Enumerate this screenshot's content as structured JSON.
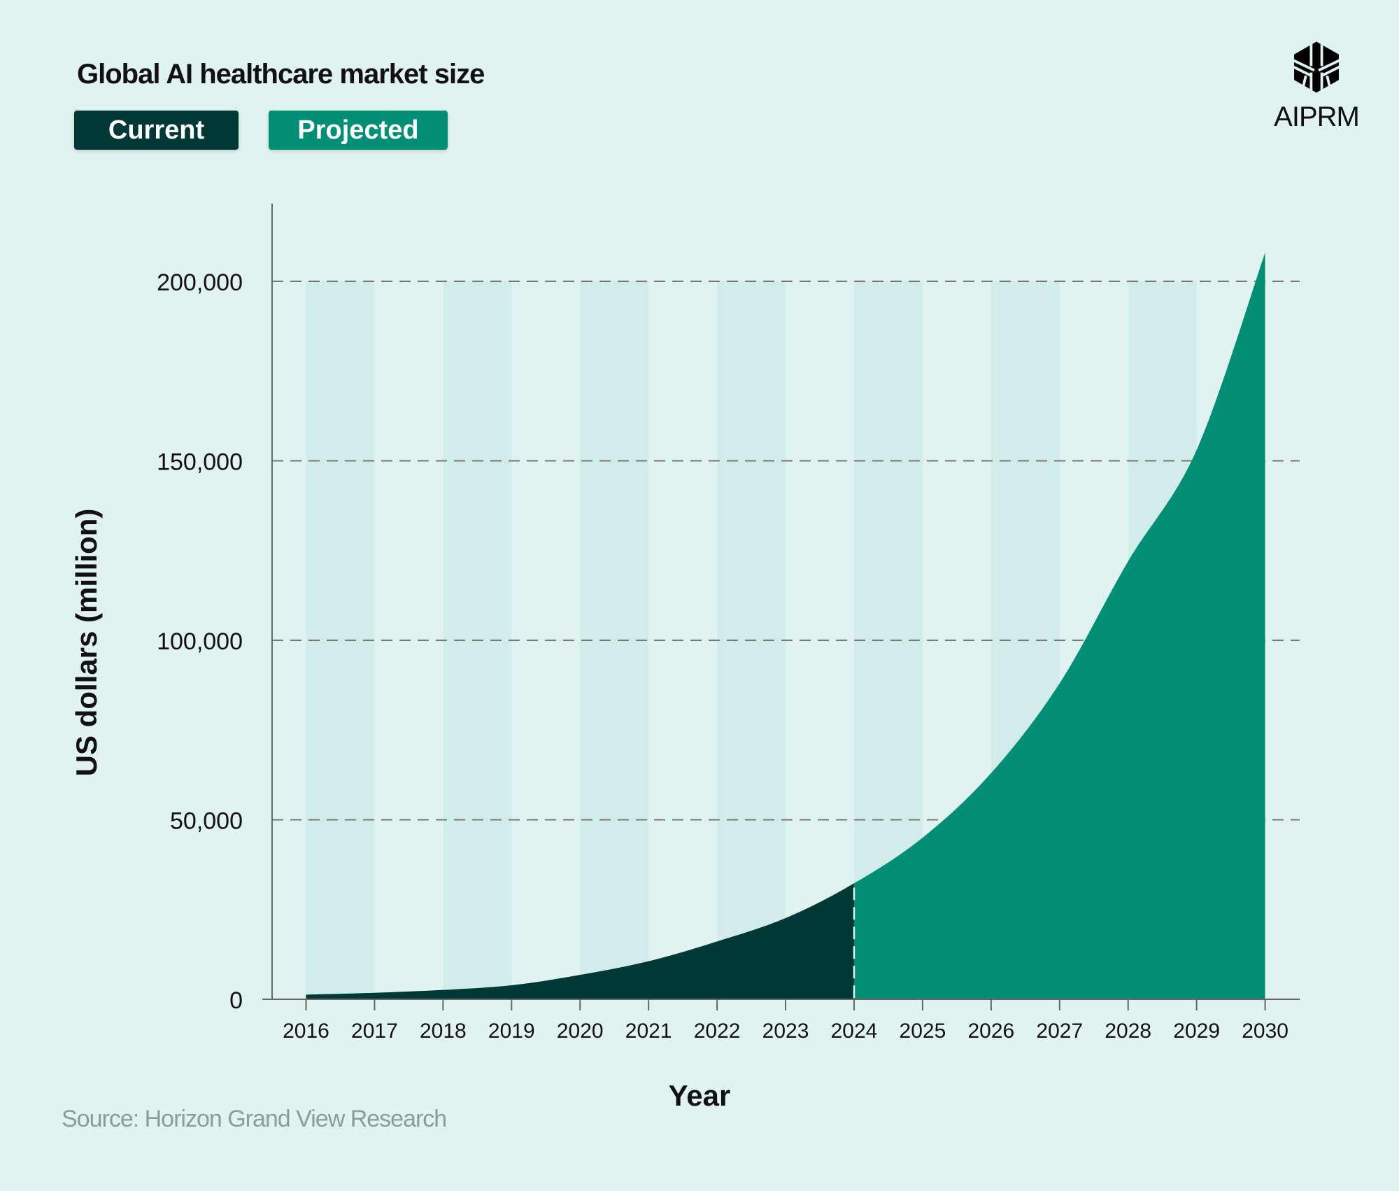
{
  "chart_data": {
    "type": "area",
    "title": "Global AI healthcare market size",
    "xlabel": "Year",
    "ylabel": "US dollars (million)",
    "ylim": [
      0,
      220000
    ],
    "yticks": [
      0,
      50000,
      100000,
      150000,
      200000
    ],
    "ytick_labels": [
      "0",
      "50,000",
      "100,000",
      "150,000",
      "200,000"
    ],
    "x": [
      2016,
      2017,
      2018,
      2019,
      2020,
      2021,
      2022,
      2023,
      2024,
      2025,
      2026,
      2027,
      2028,
      2029,
      2030
    ],
    "x_labels": [
      "2016",
      "2017",
      "2018",
      "2019",
      "2020",
      "2021",
      "2022",
      "2023",
      "2024",
      "2025",
      "2026",
      "2027",
      "2028",
      "2029",
      "2030"
    ],
    "values": [
      1300,
      1800,
      2600,
      3900,
      6800,
      10600,
      16100,
      22600,
      32300,
      45000,
      63000,
      88000,
      122000,
      153000,
      208000
    ],
    "series": [
      {
        "name": "Current",
        "from": 2016,
        "to": 2024,
        "color": "#003836"
      },
      {
        "name": "Projected",
        "from": 2024,
        "to": 2030,
        "color": "#008f74"
      }
    ],
    "grid": "horizontal dashed",
    "legend_placement": "top-left"
  },
  "source": "Source: Horizon Grand View Research",
  "logo": {
    "text": "AIPRM"
  },
  "colors": {
    "background": "#e0f3f0",
    "band": "#d2ede9",
    "current": "#003836",
    "projected": "#008f74"
  }
}
